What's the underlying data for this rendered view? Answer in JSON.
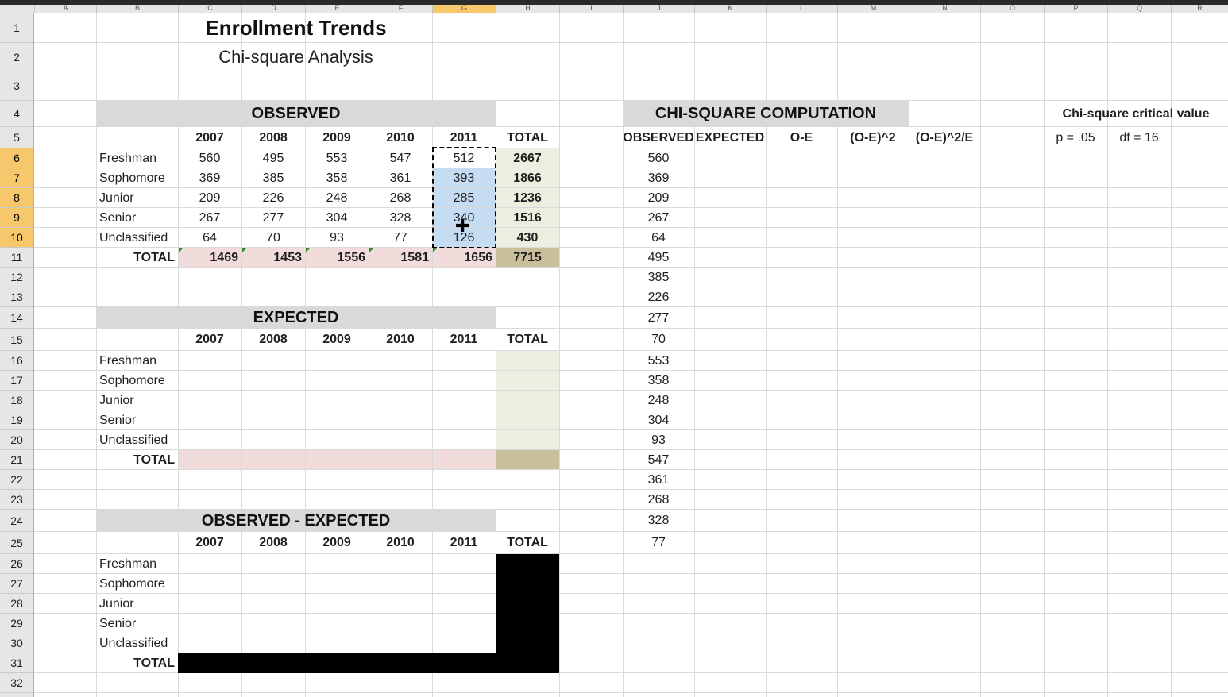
{
  "columns": [
    "A",
    "B",
    "C",
    "D",
    "E",
    "F",
    "G",
    "H",
    "I",
    "J",
    "K",
    "L",
    "M",
    "N",
    "O",
    "P",
    "Q",
    "R"
  ],
  "rows": [
    "1",
    "2",
    "3",
    "4",
    "5",
    "6",
    "7",
    "8",
    "9",
    "10",
    "11",
    "12",
    "13",
    "14",
    "15",
    "16",
    "17",
    "18",
    "19",
    "20",
    "21",
    "22",
    "23",
    "24",
    "25",
    "26",
    "27",
    "28",
    "29",
    "30",
    "31",
    "32"
  ],
  "title": "Enrollment Trends",
  "subtitle": "Chi-square Analysis",
  "years": [
    "2007",
    "2008",
    "2009",
    "2010",
    "2011"
  ],
  "total_label": "TOTAL",
  "categories": [
    "Freshman",
    "Sophomore",
    "Junior",
    "Senior",
    "Unclassified"
  ],
  "observed": {
    "header": "OBSERVED",
    "rows": [
      [
        "560",
        "495",
        "553",
        "547",
        "512",
        "2667"
      ],
      [
        "369",
        "385",
        "358",
        "361",
        "393",
        "1866"
      ],
      [
        "209",
        "226",
        "248",
        "268",
        "285",
        "1236"
      ],
      [
        "267",
        "277",
        "304",
        "328",
        "340",
        "1516"
      ],
      [
        "64",
        "70",
        "93",
        "77",
        "126",
        "430"
      ]
    ],
    "totals": [
      "1469",
      "1453",
      "1556",
      "1581",
      "1656",
      "7715"
    ]
  },
  "expected": {
    "header": "EXPECTED"
  },
  "diff": {
    "header": "OBSERVED - EXPECTED"
  },
  "chi": {
    "header": "CHI-SQUARE COMPUTATION",
    "columns": [
      "OBSERVED",
      "EXPECTED",
      "O-E",
      "(O-E)^2",
      "(O-E)^2/E"
    ],
    "observed_values": [
      "560",
      "369",
      "209",
      "267",
      "64",
      "495",
      "385",
      "226",
      "277",
      "70",
      "553",
      "358",
      "248",
      "304",
      "93",
      "547",
      "361",
      "268",
      "328",
      "77"
    ]
  },
  "critical": {
    "header": "Chi-square critical value",
    "p": "p = .05",
    "df": "df = 16"
  },
  "selection": {
    "column": "G",
    "rows": [
      "6",
      "7",
      "8",
      "9",
      "10"
    ],
    "highlight_color": "#c6dcf2"
  },
  "colors": {
    "header_gray": "#d9d9d9",
    "total_col": "#eeeee0",
    "total_row": "#f2dcdb",
    "grand_total": "#c9bf9a",
    "blackout": "#000000"
  }
}
